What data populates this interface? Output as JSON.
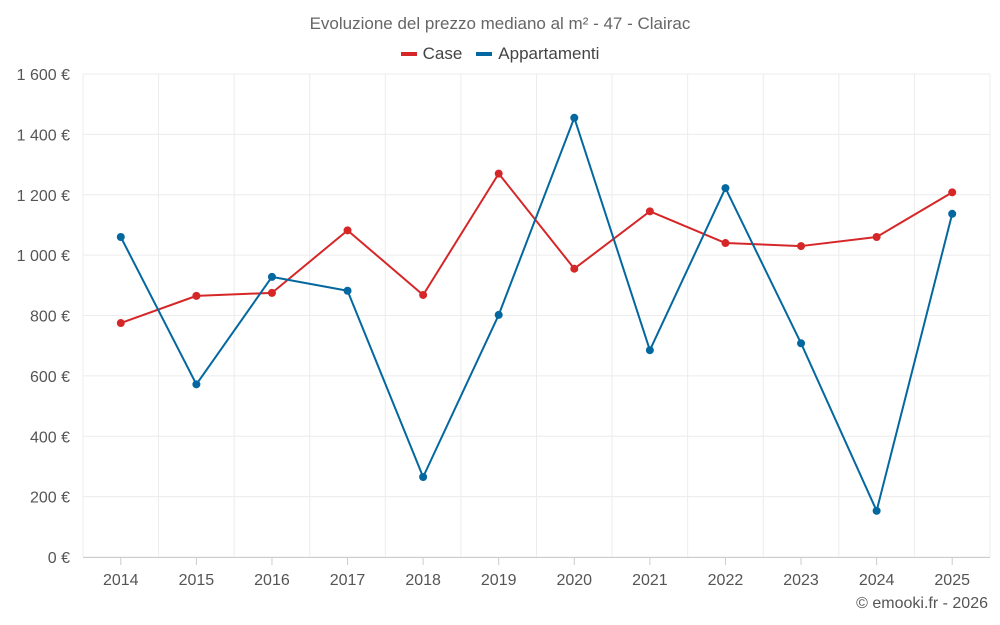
{
  "chart_data": {
    "type": "line",
    "title": "Evoluzione del prezzo mediano al m² - 47 - Clairac",
    "categories": [
      "2014",
      "2015",
      "2016",
      "2017",
      "2018",
      "2019",
      "2020",
      "2021",
      "2022",
      "2023",
      "2024",
      "2025"
    ],
    "series": [
      {
        "name": "Case",
        "color": "#d62728",
        "values": [
          775,
          865,
          875,
          1082,
          868,
          1270,
          955,
          1145,
          1040,
          1030,
          1060,
          1208
        ]
      },
      {
        "name": "Appartamenti",
        "color": "#03689f",
        "values": [
          1060,
          572,
          928,
          882,
          265,
          802,
          1455,
          685,
          1222,
          708,
          153,
          1137
        ]
      }
    ],
    "yticks": [
      "0 €",
      "200 €",
      "400 €",
      "600 €",
      "800 €",
      "1 000 €",
      "1 200 €",
      "1 400 €",
      "1 600 €"
    ],
    "ylim": [
      0,
      1600
    ],
    "xlabel": "",
    "ylabel": "",
    "grid": true,
    "legend_position": "top-center"
  },
  "credit": "© emooki.fr - 2026"
}
